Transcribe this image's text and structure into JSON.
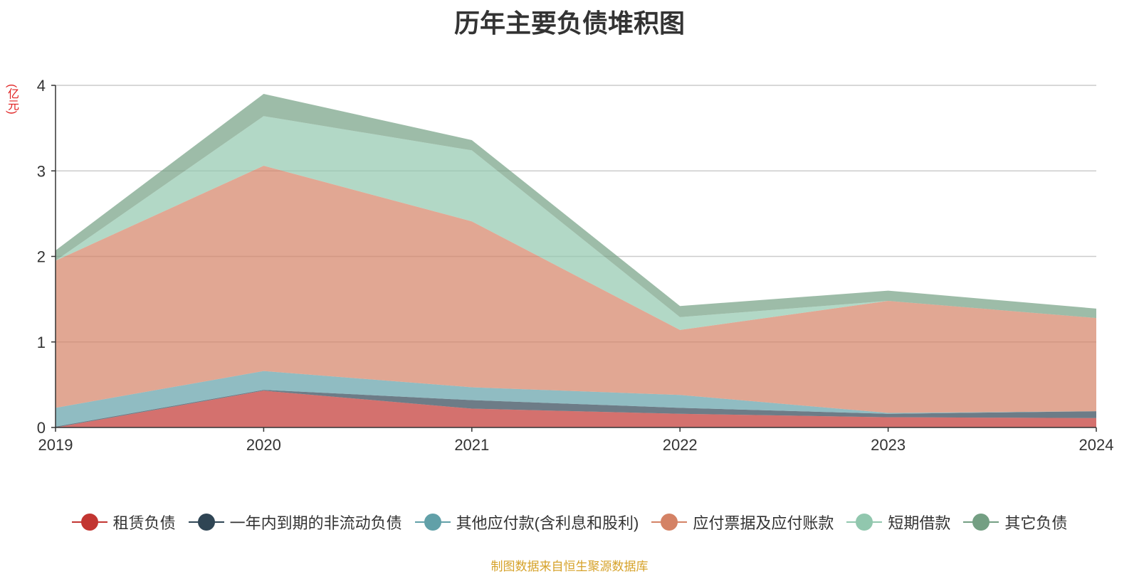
{
  "chart_data": {
    "type": "area",
    "stacked": true,
    "title": "历年主要负债堆积图",
    "unit_label": "(亿元)",
    "x": [
      "2019",
      "2020",
      "2021",
      "2022",
      "2023",
      "2024"
    ],
    "ylim": [
      0,
      4
    ],
    "yticks": [
      0,
      1,
      2,
      3,
      4
    ],
    "grid": true,
    "legend_position": "bottom",
    "series": [
      {
        "name": "租赁负债",
        "color": "#c23531",
        "values": [
          0.0,
          0.43,
          0.22,
          0.16,
          0.12,
          0.11
        ]
      },
      {
        "name": "一年内到期的非流动负债",
        "color": "#2f4554",
        "values": [
          0.01,
          0.01,
          0.1,
          0.07,
          0.04,
          0.08
        ]
      },
      {
        "name": "其他应付款(含利息和股利)",
        "color": "#61a0a8",
        "values": [
          0.22,
          0.22,
          0.15,
          0.15,
          0.01,
          0.0
        ]
      },
      {
        "name": "应付票据及应付账款",
        "color": "#d48265",
        "values": [
          1.72,
          2.4,
          1.94,
          0.76,
          1.31,
          1.09
        ]
      },
      {
        "name": "短期借款",
        "color": "#91c7ae",
        "values": [
          0.0,
          0.58,
          0.83,
          0.15,
          0.0,
          0.0
        ]
      },
      {
        "name": "其它负债",
        "color": "#749f83",
        "values": [
          0.12,
          0.26,
          0.12,
          0.13,
          0.12,
          0.11
        ]
      }
    ]
  },
  "source_note": "制图数据来自恒生聚源数据库"
}
